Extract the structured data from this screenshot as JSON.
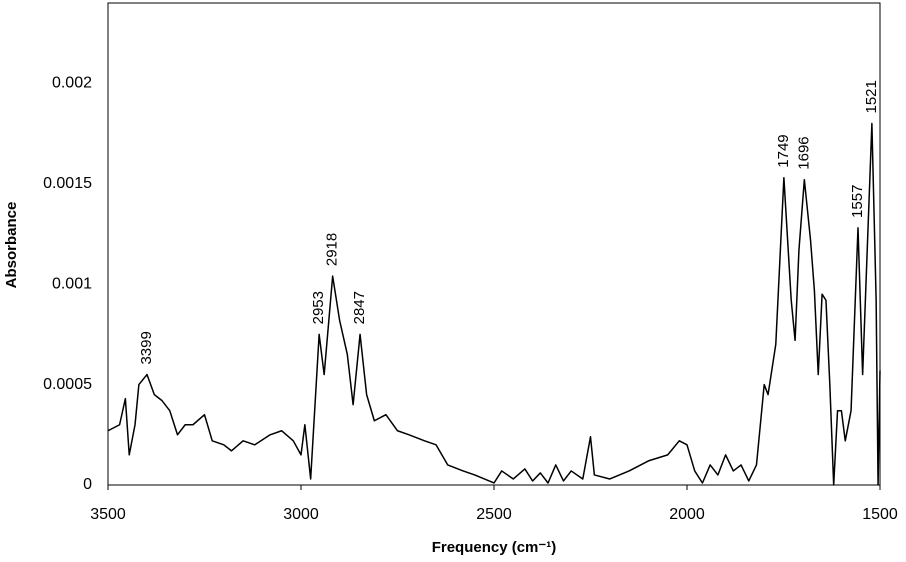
{
  "chart_data": {
    "type": "line",
    "xlabel": "Frequency (cm⁻¹)",
    "ylabel": "Absorbance",
    "color": "#000000",
    "xlim": [
      3500,
      1500
    ],
    "ylim": [
      0,
      0.0024
    ],
    "xticks": [
      3500,
      3000,
      2500,
      2000,
      1500
    ],
    "yticks": [
      0,
      0.0005,
      0.001,
      0.0015,
      0.002
    ],
    "grid": false,
    "x": [
      3500,
      3470,
      3455,
      3445,
      3430,
      3420,
      3399,
      3380,
      3360,
      3340,
      3320,
      3300,
      3280,
      3250,
      3230,
      3200,
      3180,
      3150,
      3120,
      3080,
      3050,
      3020,
      3000,
      2990,
      2975,
      2953,
      2940,
      2918,
      2900,
      2880,
      2865,
      2847,
      2830,
      2810,
      2780,
      2750,
      2720,
      2680,
      2650,
      2620,
      2580,
      2550,
      2500,
      2480,
      2450,
      2420,
      2400,
      2380,
      2360,
      2340,
      2320,
      2300,
      2270,
      2250,
      2240,
      2200,
      2150,
      2100,
      2050,
      2020,
      2000,
      1980,
      1960,
      1940,
      1920,
      1900,
      1880,
      1860,
      1840,
      1820,
      1800,
      1790,
      1770,
      1749,
      1730,
      1720,
      1710,
      1696,
      1680,
      1670,
      1660,
      1650,
      1640,
      1630,
      1620,
      1610,
      1600,
      1590,
      1575,
      1557,
      1545,
      1521,
      1510,
      1505,
      1500
    ],
    "values": [
      0.00027,
      0.0003,
      0.00043,
      0.00015,
      0.0003,
      0.0005,
      0.00055,
      0.00045,
      0.00042,
      0.00037,
      0.00025,
      0.0003,
      0.0003,
      0.00035,
      0.00022,
      0.0002,
      0.00017,
      0.00022,
      0.0002,
      0.00025,
      0.00027,
      0.00022,
      0.00015,
      0.0003,
      3e-05,
      0.00075,
      0.00055,
      0.00104,
      0.00082,
      0.00065,
      0.0004,
      0.00075,
      0.00045,
      0.00032,
      0.00035,
      0.00027,
      0.00025,
      0.00022,
      0.0002,
      0.0001,
      7e-05,
      5e-05,
      1e-05,
      7e-05,
      3e-05,
      8e-05,
      2e-05,
      6e-05,
      1e-05,
      0.0001,
      2e-05,
      7e-05,
      3e-05,
      0.00024,
      5e-05,
      3e-05,
      7e-05,
      0.00012,
      0.00015,
      0.00022,
      0.0002,
      7e-05,
      1e-05,
      0.0001,
      5e-05,
      0.00015,
      7e-05,
      0.0001,
      2e-05,
      0.0001,
      0.0005,
      0.00045,
      0.0007,
      0.00153,
      0.00092,
      0.00072,
      0.00117,
      0.00152,
      0.00122,
      0.00097,
      0.00055,
      0.00095,
      0.00092,
      0.0005,
      0,
      0.00037,
      0.00037,
      0.00022,
      0.00037,
      0.00128,
      0.00055,
      0.0018,
      0.00092,
      0,
      0.00057
    ],
    "annotations": [
      {
        "x": 3399,
        "label": "3399"
      },
      {
        "x": 2953,
        "label": "2953"
      },
      {
        "x": 2918,
        "label": "2918"
      },
      {
        "x": 2847,
        "label": "2847"
      },
      {
        "x": 1749,
        "label": "1749"
      },
      {
        "x": 1696,
        "label": "1696"
      },
      {
        "x": 1557,
        "label": "1557"
      },
      {
        "x": 1521,
        "label": "1521"
      }
    ]
  }
}
